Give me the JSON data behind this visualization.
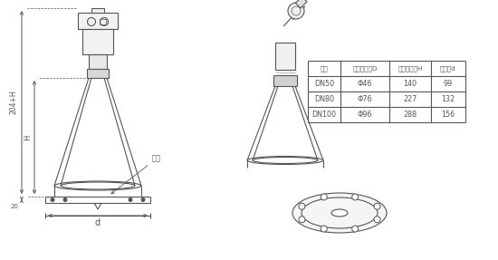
{
  "bg_color": "#ffffff",
  "line_color": "#555555",
  "table_header": [
    "法兰",
    "喇叭口直径D",
    "喇叭口高度H",
    "四螺盘d"
  ],
  "table_rows": [
    [
      "DN50",
      "Φ46",
      "140",
      "99"
    ],
    [
      "DN80",
      "Φ76",
      "227",
      "132"
    ],
    [
      "DN100",
      "Φ96",
      "288",
      "156"
    ]
  ],
  "dim_label_204H": "204+H",
  "dim_label_H": "H",
  "dim_label_20": "20",
  "dim_label_d": "d",
  "dim_label_flange": "法兰"
}
